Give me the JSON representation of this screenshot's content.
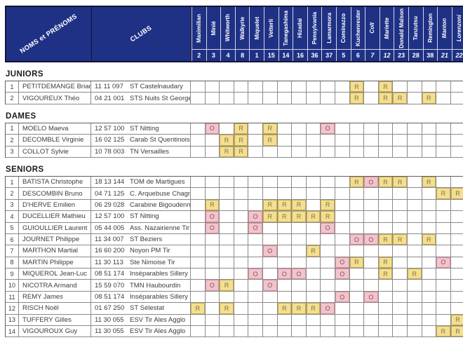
{
  "header": {
    "names_label": "NOMS et PRÉNOMS",
    "clubs_label": "CLUBS",
    "columns": [
      {
        "name": "Maximilian",
        "num": "2",
        "italic": false
      },
      {
        "name": "Minié",
        "num": "3",
        "italic": false
      },
      {
        "name": "Whitworth",
        "num": "4",
        "italic": false
      },
      {
        "name": "Walkyrie",
        "num": "8",
        "italic": false
      },
      {
        "name": "Miquelet",
        "num": "1",
        "italic": false
      },
      {
        "name": "Vetterli",
        "num": "15",
        "italic": false
      },
      {
        "name": "Tanegashima",
        "num": "14",
        "italic": false
      },
      {
        "name": "Hizadai",
        "num": "16",
        "italic": false
      },
      {
        "name": "Pensylvania",
        "num": "36",
        "italic": false
      },
      {
        "name": "Lamarmora",
        "num": "37",
        "italic": false
      },
      {
        "name": "Cominazzo",
        "num": "5",
        "italic": false
      },
      {
        "name": "Kuchenreuter",
        "num": "6",
        "italic": false
      },
      {
        "name": "Colt",
        "num": "7",
        "italic": true
      },
      {
        "name": "Mariette",
        "num": "12",
        "italic": true
      },
      {
        "name": "Donald Malson",
        "num": "23",
        "italic": false
      },
      {
        "name": "Tanzutsu",
        "num": "28",
        "italic": false
      },
      {
        "name": "Remington",
        "num": "38",
        "italic": false
      },
      {
        "name": "Manton",
        "num": "21",
        "italic": true
      },
      {
        "name": "Lorenzoni",
        "num": "22",
        "italic": true
      }
    ]
  },
  "legend": {
    "mark_regional": "R",
    "mark_open": "O",
    "color_R_fill": "#f3df8f",
    "color_O_fill": "#f2c4cc",
    "color_header": "#1f3185"
  },
  "sections": [
    {
      "title": "JUNIORS",
      "rows": [
        {
          "num": "1",
          "name": "PETITDEMANGE Brian",
          "license": "11 11 097",
          "club": "ST Castelnaudary",
          "marks": {
            "11": "R",
            "13": "R"
          }
        },
        {
          "num": "2",
          "name": "VIGOUREUX Théo",
          "license": "04 21 001",
          "club": "STS Nuits St Georges",
          "marks": {
            "11": "R",
            "13": "R",
            "14": "R",
            "16": "R"
          }
        }
      ]
    },
    {
      "title": "DAMES",
      "rows": [
        {
          "num": "1",
          "name": "MOELO Maeva",
          "license": "12 57 100",
          "club": "ST Nitting",
          "marks": {
            "1": "O",
            "3": "R",
            "5": "R",
            "9": "O"
          }
        },
        {
          "num": "2",
          "name": "DECOMBLE Virginie",
          "license": "16 02 125",
          "club": "Carab St Quentinois",
          "marks": {
            "2": "R",
            "3": "R",
            "5": "R"
          }
        },
        {
          "num": "3",
          "name": "COLLOT Sylvie",
          "license": "10 78 003",
          "club": "TN Versailles",
          "marks": {
            "2": "R",
            "3": "R"
          }
        }
      ]
    },
    {
      "title": "SENIORS",
      "rows": [
        {
          "num": "1",
          "name": "BATISTA Christophe",
          "license": "18 13 144",
          "club": "TOM de Martigues",
          "marks": {
            "11": "R",
            "12": "O",
            "13": "R",
            "14": "R",
            "16": "R"
          }
        },
        {
          "num": "2",
          "name": "DESCOMBIN Bruno",
          "license": "04 71 125",
          "club": "C. Arquebuse Chagny",
          "marks": {
            "17": "R",
            "18": "R"
          }
        },
        {
          "num": "3",
          "name": "D'HERVE Emilien",
          "license": "06 29 028",
          "club": "Carabine Bigoudenne",
          "marks": {
            "1": "R",
            "5": "R",
            "6": "R",
            "7": "R",
            "9": "R"
          }
        },
        {
          "num": "4",
          "name": "DUCELLIER Mathieu",
          "license": "12 57 100",
          "club": "ST Nitting",
          "marks": {
            "1": "O",
            "4": "O",
            "5": "R",
            "6": "R",
            "7": "R",
            "8": "R",
            "9": "R"
          }
        },
        {
          "num": "5",
          "name": "GUIOULLIER Laurent",
          "license": "05 44 005",
          "club": "Ass. Nazairienne Tir",
          "marks": {
            "1": "O",
            "4": "O",
            "9": "O"
          }
        },
        {
          "num": "6",
          "name": "JOURNET Philippe",
          "license": "11 34 007",
          "club": "ST Beziers",
          "marks": {
            "11": "O",
            "12": "O",
            "13": "R",
            "14": "R",
            "16": "R"
          }
        },
        {
          "num": "7",
          "name": "MARTHON Martial",
          "license": "16 60 200",
          "club": "Noyon PM Tir",
          "marks": {
            "5": "O",
            "8": "R"
          }
        },
        {
          "num": "8",
          "name": "MARTIN Philippe",
          "license": "11 30 113",
          "club": "Ste Nimoise Tir",
          "marks": {
            "10": "O",
            "11": "R",
            "13": "R",
            "17": "O"
          }
        },
        {
          "num": "9",
          "name": "MIQUEROL Jean-Luc",
          "license": "08 51 174",
          "club": "Inséparables Sillery",
          "marks": {
            "4": "O",
            "6": "O",
            "7": "O",
            "10": "O",
            "13": "R",
            "15": "R"
          }
        },
        {
          "num": "10",
          "name": "NICOTRA Armand",
          "license": "15 59 070",
          "club": "TMN Haubourdin",
          "marks": {
            "1": "O",
            "2": "R",
            "5": "O"
          }
        },
        {
          "num": "11",
          "name": "REMY James",
          "license": "08 51 174",
          "club": "Inséparables Sillery",
          "marks": {
            "10": "O",
            "12": "O"
          }
        },
        {
          "num": "12",
          "name": "RISCH Noël",
          "license": "01 67 250",
          "club": "ST Sélestat",
          "marks": {
            "0": "R",
            "2": "R",
            "6": "R",
            "7": "R",
            "8": "R",
            "9": "O"
          }
        },
        {
          "num": "13",
          "name": "TUFFERY Gilles",
          "license": "11 30 055",
          "club": "ESV Tir Ales Agglo",
          "marks": {
            "18": "R"
          }
        },
        {
          "num": "14",
          "name": "VIGOUROUX Guy",
          "license": "11 30 055",
          "club": "ESV Tir Ales Agglo",
          "marks": {
            "17": "R",
            "18": "R"
          }
        }
      ]
    }
  ]
}
